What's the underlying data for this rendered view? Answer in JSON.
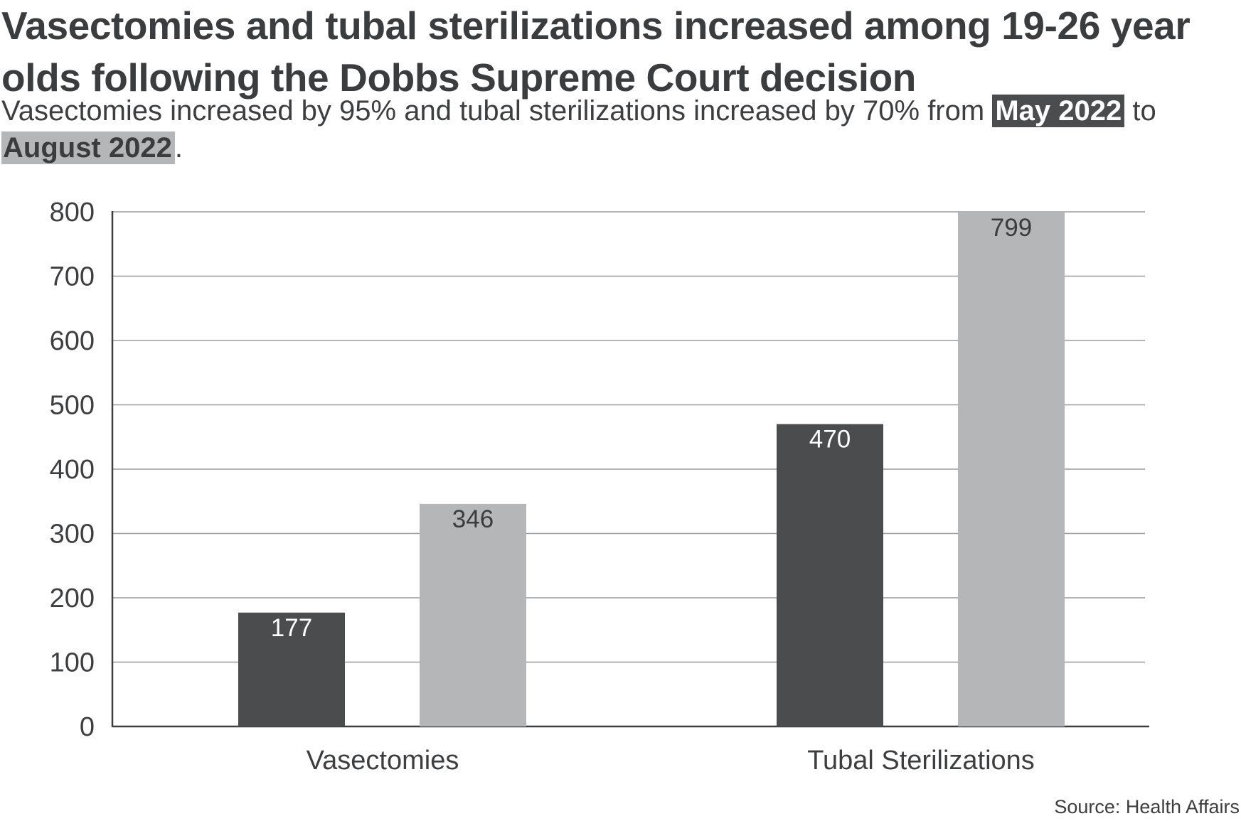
{
  "title": "Vasectomies and tubal sterilizations increased among 19-26 year olds following the Dobbs Supreme Court decision",
  "subtitle": {
    "text_before": "Vasectomies increased by 95% and tubal sterilizations increased by 70% from",
    "highlight_1": "May 2022",
    "text_middle": "to",
    "highlight_2": "August 2022",
    "text_after": "."
  },
  "source": "Source: Health Affairs",
  "colors": {
    "may_2022": "#4b4c4e",
    "august_2022": "#b5b6b8",
    "grid": "#9a9b9d",
    "axis": "#3d3e40"
  },
  "chart_data": {
    "type": "bar",
    "title": "Vasectomies and tubal sterilizations increased among 19-26 year olds following the Dobbs Supreme Court decision",
    "xlabel": "",
    "ylabel": "",
    "categories": [
      "Vasectomies",
      "Tubal Sterilizations"
    ],
    "series": [
      {
        "name": "May 2022",
        "values": [
          177,
          470
        ]
      },
      {
        "name": "August 2022",
        "values": [
          346,
          799
        ]
      }
    ],
    "ylim": [
      0,
      800
    ],
    "yticks": [
      0,
      100,
      200,
      300,
      400,
      500,
      600,
      700,
      800
    ],
    "grid": true,
    "data_labels": true
  }
}
